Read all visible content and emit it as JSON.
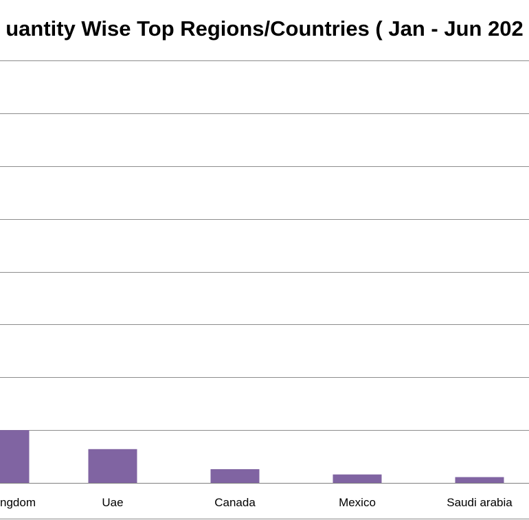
{
  "chart_data": {
    "type": "bar",
    "title": "uantity Wise Top Regions/Countries ( Jan - Jun 202",
    "categories": [
      "ngdom",
      "Uae",
      "Canada",
      "Mexico",
      "Saudi arabia"
    ],
    "values": [
      5.0,
      3.2,
      1.3,
      0.8,
      0.55
    ],
    "ylim": [
      0,
      40
    ],
    "grid": true,
    "bar_color": "#8064a2"
  }
}
